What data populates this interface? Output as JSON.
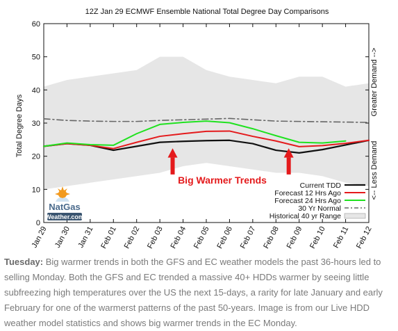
{
  "chart_data": {
    "type": "line",
    "title": "12Z Jan 29 ECMWF Ensemble National Total Degree Day Comparisons",
    "ylabel": "Total Degree Days",
    "right_label_top": "Greater Demand -->",
    "right_label_bottom": "<-- Less Demand",
    "ylim": [
      0,
      60
    ],
    "yticks": [
      0,
      10,
      20,
      30,
      40,
      50,
      60
    ],
    "categories": [
      "Jan 29",
      "Jan 30",
      "Jan 31",
      "Feb 01",
      "Feb 02",
      "Feb 03",
      "Feb 04",
      "Feb 05",
      "Feb 06",
      "Feb 07",
      "Feb 08",
      "Feb 09",
      "Feb 10",
      "Feb 11",
      "Feb 12"
    ],
    "range": {
      "name": "Historical 40 yr Range",
      "color": "#e6e6e6",
      "upper": [
        41,
        43,
        44,
        45,
        46,
        50,
        50,
        46,
        44,
        43,
        42,
        44,
        44,
        41,
        42
      ],
      "lower": [
        10,
        11,
        12,
        13,
        14,
        15,
        17,
        18,
        17,
        16,
        15,
        15,
        14,
        12,
        11
      ]
    },
    "series": [
      {
        "name": "Current TDD",
        "color": "#111111",
        "width": 2.2,
        "dash": "",
        "values": [
          23,
          23.8,
          23.3,
          21.8,
          23,
          24.2,
          24.5,
          24.7,
          24.8,
          23.8,
          21.8,
          21,
          22,
          23.4,
          24.8
        ]
      },
      {
        "name": "Forecast 12 Hrs Ago",
        "color": "#e41a1c",
        "width": 2,
        "dash": "",
        "values": [
          23,
          23.8,
          23.3,
          22.3,
          24.2,
          26,
          26.8,
          27.5,
          27.6,
          26,
          24.6,
          22.9,
          23.2,
          23.9,
          24.8
        ]
      },
      {
        "name": "Forecast 24 Hrs Ago",
        "color": "#1fe21f",
        "width": 2,
        "dash": "",
        "values": [
          23,
          24,
          23.5,
          23.3,
          26.8,
          29.6,
          30.2,
          30.6,
          30.1,
          28.3,
          26.2,
          24.2,
          24,
          24.6,
          null
        ]
      },
      {
        "name": "30 Yr Normal",
        "color": "#666666",
        "width": 1.6,
        "dash": "9,4,2,4",
        "values": [
          31.3,
          30.8,
          30.6,
          30.5,
          30.5,
          30.8,
          31,
          31.2,
          31.4,
          31,
          30.6,
          30.5,
          30.4,
          30.3,
          30.2
        ]
      }
    ],
    "legend_position": "bottom-right",
    "annotation": "Big Warmer Trends",
    "arrows_at": [
      "Feb 03",
      "Feb 08"
    ]
  },
  "watermark": {
    "line1": "NatGas",
    "line2": "Weather.com"
  },
  "caption": {
    "lead": "Tuesday:",
    "text": " Big warmer trends in both the GFS and EC weather models the past 36-hours led to selling Monday. Both the GFS and EC trended a massive 40+ HDDs warmer by seeing little subfreezing high temperatures over the US the next 15-days, a rarity for late January and early February for one of the warmerst patterns of the past 50-years.  Image is from our Live HDD weather model statistics and shows big warmer trends in the EC Monday."
  },
  "colors": {
    "annotation": "#e41a1c",
    "caption_text": "#7a7a7a"
  }
}
